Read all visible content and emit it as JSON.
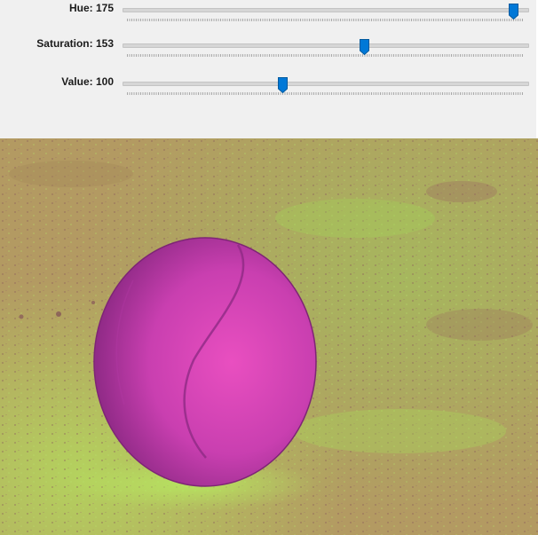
{
  "sliders": [
    {
      "label": "Hue: 175",
      "value": 175,
      "max": 179
    },
    {
      "label": "Saturation: 153",
      "value": 153,
      "max": 255
    },
    {
      "label": "Value: 100",
      "value": 100,
      "max": 255
    }
  ],
  "colors": {
    "thumb": "#0078d7",
    "ball": "#c93fb0",
    "ground": "#b39a62",
    "ground_highlight": "#a6e05a"
  }
}
